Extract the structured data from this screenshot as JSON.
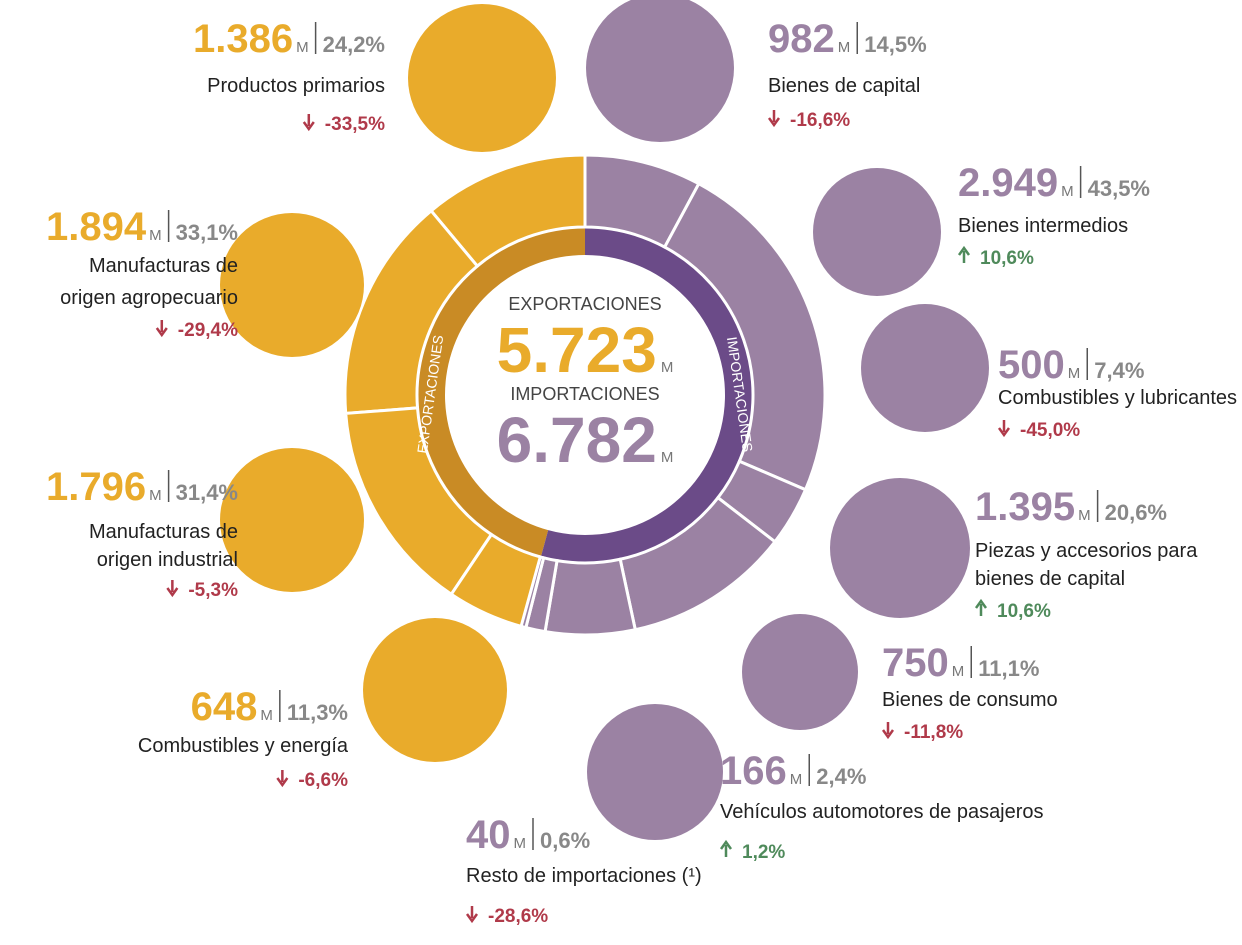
{
  "unit": "M",
  "exports": {
    "title": "EXPORTACIONES",
    "total": 5723,
    "total_label": "5.723",
    "items": [
      {
        "value_label": "1.386",
        "share": 24.2,
        "share_label": "24,2%",
        "name": [
          "Productos primarios"
        ],
        "trend": "down",
        "change_label": "-33,5%"
      },
      {
        "value_label": "1.894",
        "share": 33.1,
        "share_label": "33,1%",
        "name": [
          "Manufacturas de",
          "origen agropecuario"
        ],
        "trend": "down",
        "change_label": "-29,4%"
      },
      {
        "value_label": "1.796",
        "share": 31.4,
        "share_label": "31,4%",
        "name": [
          "Manufacturas de",
          "origen industrial"
        ],
        "trend": "down",
        "change_label": "-5,3%"
      },
      {
        "value_label": "648",
        "share": 11.3,
        "share_label": "11,3%",
        "name": [
          "Combustibles y energía"
        ],
        "trend": "down",
        "change_label": "-6,6%"
      }
    ]
  },
  "imports": {
    "title": "IMPORTACIONES",
    "total": 6782,
    "total_label": "6.782",
    "items": [
      {
        "value_label": "982",
        "share": 14.5,
        "share_label": "14,5%",
        "name": [
          "Bienes de capital"
        ],
        "trend": "down",
        "change_label": "-16,6%"
      },
      {
        "value_label": "2.949",
        "share": 43.5,
        "share_label": "43,5%",
        "name": [
          "Bienes intermedios"
        ],
        "trend": "up",
        "change_label": "10,6%"
      },
      {
        "value_label": "500",
        "share": 7.4,
        "share_label": "7,4%",
        "name": [
          "Combustibles y lubricantes"
        ],
        "trend": "down",
        "change_label": "-45,0%"
      },
      {
        "value_label": "1.395",
        "share": 20.6,
        "share_label": "20,6%",
        "name": [
          "Piezas y accesorios para",
          "bienes de capital"
        ],
        "trend": "up",
        "change_label": "10,6%"
      },
      {
        "value_label": "750",
        "share": 11.1,
        "share_label": "11,1%",
        "name": [
          "Bienes de consumo"
        ],
        "trend": "down",
        "change_label": "-11,8%"
      },
      {
        "value_label": "166",
        "share": 2.4,
        "share_label": "2,4%",
        "name": [
          "Vehículos automotores de pasajeros"
        ],
        "trend": "up",
        "change_label": "1,2%"
      },
      {
        "value_label": "40",
        "share": 0.6,
        "share_label": "0,6%",
        "name": [
          "Resto de importaciones (¹)"
        ],
        "trend": "down",
        "change_label": "-28,6%"
      }
    ]
  }
}
